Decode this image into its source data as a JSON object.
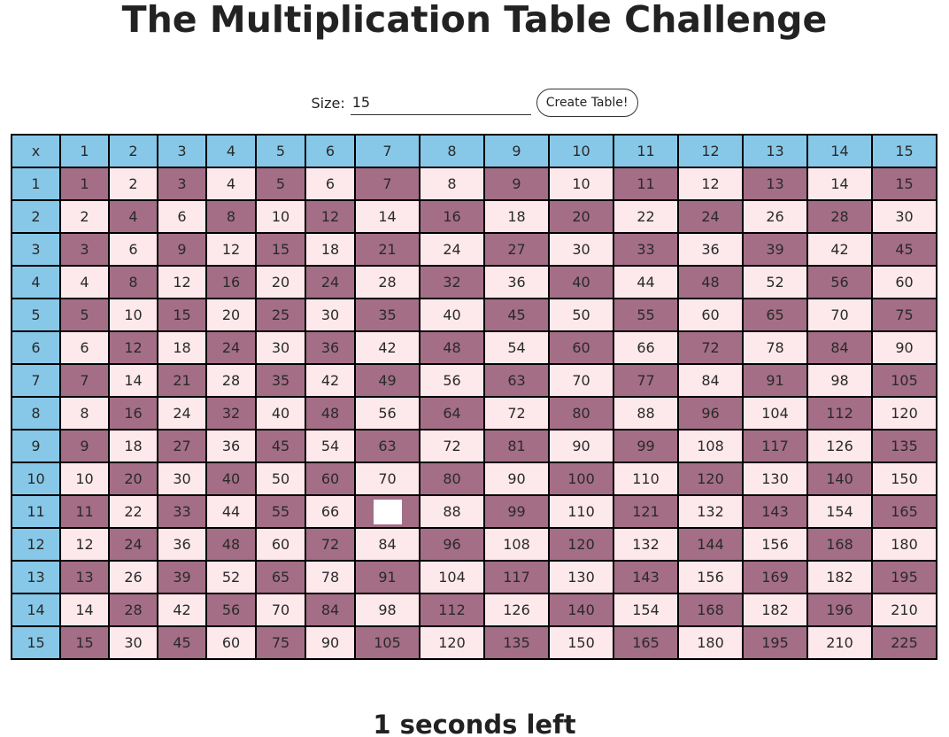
{
  "title": "The Multiplication Table Challenge",
  "controls": {
    "size_label": "Size:",
    "size_value": "15",
    "create_button": "Create Table!"
  },
  "table": {
    "corner": "x",
    "size": 15,
    "hidden_cell": {
      "row": 11,
      "col": 7
    }
  },
  "timer": "1 seconds left",
  "colors": {
    "header": "#87c8e8",
    "dark_cell": "#a46e86",
    "light_cell": "#fde9ec"
  }
}
